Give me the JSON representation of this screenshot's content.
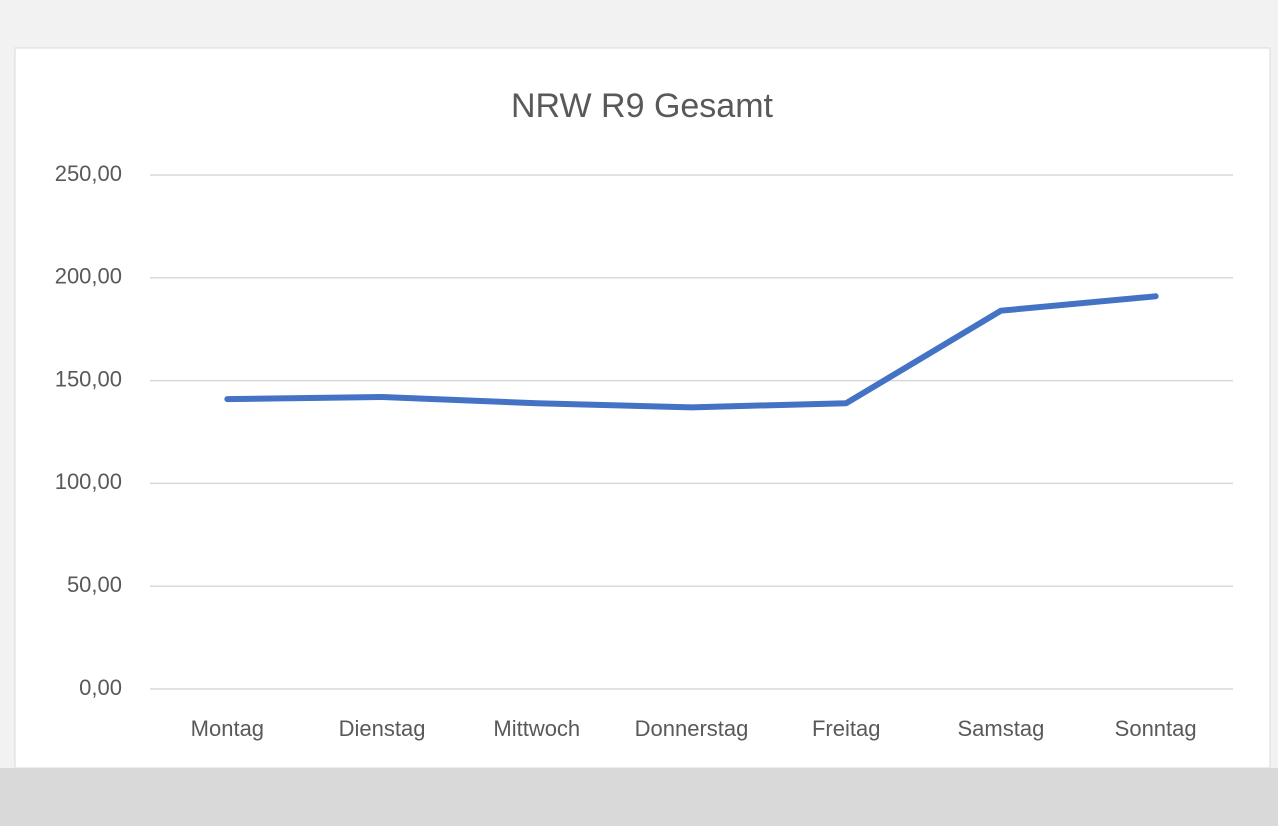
{
  "chart_data": {
    "type": "line",
    "title": "NRW R9 Gesamt",
    "categories": [
      "Montag",
      "Dienstag",
      "Mittwoch",
      "Donnerstag",
      "Freitag",
      "Samstag",
      "Sonntag"
    ],
    "series": [
      {
        "name": "NRW R9 Gesamt",
        "color": "#4472c4",
        "values": [
          141,
          142,
          139,
          137,
          139,
          184,
          191
        ]
      }
    ],
    "ylim": [
      0,
      250
    ],
    "yticks": [
      {
        "value": 0,
        "label": "0,00"
      },
      {
        "value": 50,
        "label": "50,00"
      },
      {
        "value": 100,
        "label": "100,00"
      },
      {
        "value": 150,
        "label": "150,00"
      },
      {
        "value": 200,
        "label": "200,00"
      },
      {
        "value": 250,
        "label": "250,00"
      }
    ],
    "grid": true
  }
}
